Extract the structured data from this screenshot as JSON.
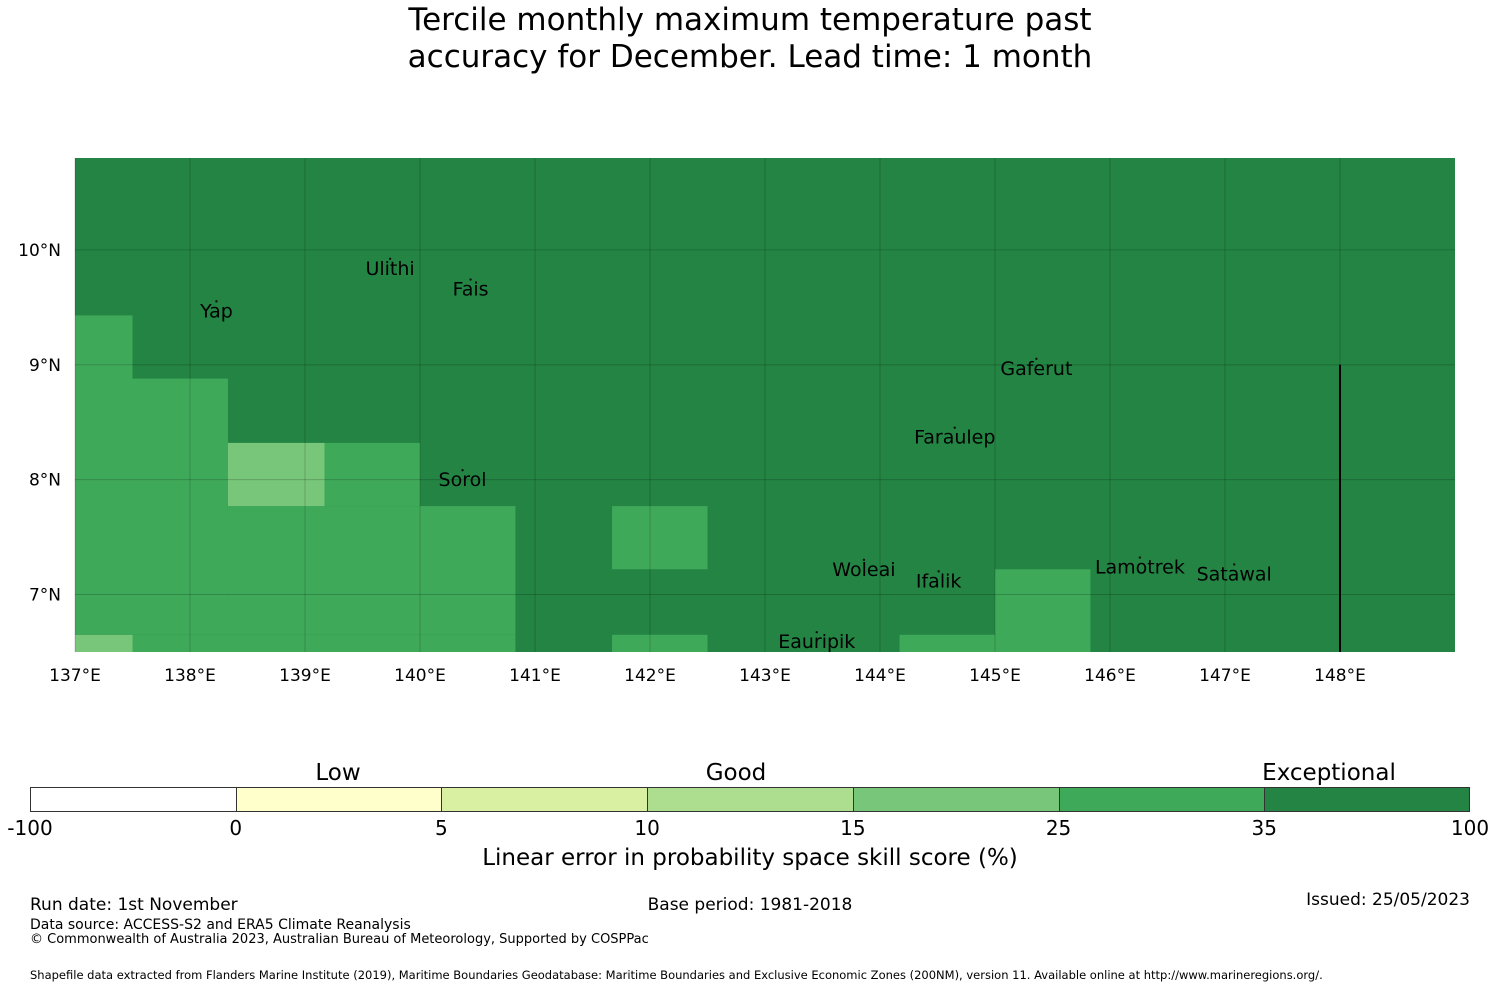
{
  "title": {
    "line1": "Tercile monthly maximum temperature past",
    "line2": "accuracy for December. Lead time: 1 month"
  },
  "map": {
    "lon_range": [
      137,
      149
    ],
    "lat_range": [
      6.5,
      10.8
    ],
    "lon_ticks": [
      137,
      138,
      139,
      140,
      141,
      142,
      143,
      144,
      145,
      146,
      147,
      148
    ],
    "lon_tick_labels": [
      "137°E",
      "138°E",
      "139°E",
      "140°E",
      "141°E",
      "142°E",
      "143°E",
      "144°E",
      "145°E",
      "146°E",
      "147°E",
      "148°E"
    ],
    "lat_ticks": [
      7,
      8,
      9,
      10
    ],
    "lat_tick_labels": [
      "7°N",
      "8°N",
      "9°N",
      "10°N"
    ],
    "background_category": 6,
    "cells": [
      {
        "lon": [
          137.0,
          137.5
        ],
        "lat": [
          6.5,
          6.65
        ],
        "cat": 4
      },
      {
        "lon": [
          137.5,
          140.83
        ],
        "lat": [
          6.5,
          6.65
        ],
        "cat": 5
      },
      {
        "lon": [
          137.0,
          137.5
        ],
        "lat": [
          6.65,
          9.43
        ],
        "cat": 5
      },
      {
        "lon": [
          137.5,
          138.33
        ],
        "lat": [
          6.65,
          8.88
        ],
        "cat": 5
      },
      {
        "lon": [
          138.33,
          140.0
        ],
        "lat": [
          6.65,
          7.77
        ],
        "cat": 5
      },
      {
        "lon": [
          138.33,
          139.17
        ],
        "lat": [
          7.77,
          8.32
        ],
        "cat": 4
      },
      {
        "lon": [
          139.17,
          140.0
        ],
        "lat": [
          7.77,
          8.32
        ],
        "cat": 5
      },
      {
        "lon": [
          140.0,
          140.83
        ],
        "lat": [
          6.65,
          7.77
        ],
        "cat": 5
      },
      {
        "lon": [
          141.67,
          142.5
        ],
        "lat": [
          7.22,
          7.77
        ],
        "cat": 5
      },
      {
        "lon": [
          141.67,
          142.5
        ],
        "lat": [
          6.5,
          6.65
        ],
        "cat": 5
      },
      {
        "lon": [
          144.17,
          145.0
        ],
        "lat": [
          6.5,
          6.65
        ],
        "cat": 5
      },
      {
        "lon": [
          145.0,
          145.83
        ],
        "lat": [
          6.5,
          7.22
        ],
        "cat": 5
      }
    ],
    "places": [
      {
        "name": "Ulithi",
        "lon": 139.74,
        "lat": 9.87
      },
      {
        "name": "Fais",
        "lon": 140.44,
        "lat": 9.69
      },
      {
        "name": "Yap",
        "lon": 138.23,
        "lat": 9.5
      },
      {
        "name": "Gaferut",
        "lon": 145.36,
        "lat": 9.0
      },
      {
        "name": "Faraulep",
        "lon": 144.65,
        "lat": 8.4
      },
      {
        "name": "Sorol",
        "lon": 140.37,
        "lat": 8.03
      },
      {
        "name": "Lamotrek",
        "lon": 146.26,
        "lat": 7.27
      },
      {
        "name": "Woleai",
        "lon": 143.86,
        "lat": 7.25
      },
      {
        "name": "Satawal",
        "lon": 147.08,
        "lat": 7.21
      },
      {
        "name": "Ifalik",
        "lon": 144.51,
        "lat": 7.15
      },
      {
        "name": "Eauripik",
        "lon": 143.45,
        "lat": 6.62
      }
    ],
    "boundary_line": {
      "lon": 148.0,
      "lat": [
        6.5,
        9.0
      ]
    }
  },
  "colorbar": {
    "colors": [
      "#ffffff",
      "#ffffcc",
      "#d9f0a3",
      "#addd8e",
      "#78c679",
      "#3fa95a",
      "#238443"
    ],
    "ticks": [
      "-100",
      "0",
      "5",
      "10",
      "15",
      "25",
      "35",
      "100"
    ],
    "class_labels": [
      "Low",
      "Good",
      "Exceptional"
    ],
    "label": "Linear error in probability space skill score (%)"
  },
  "footer": {
    "run_date": "Run date: 1st November",
    "base_period": "Base period: 1981-2018",
    "issued": "Issued: 25/05/2023",
    "data_source": "Data source: ACCESS-S2 and ERA5 Climate Reanalysis",
    "copyright": "© Commonwealth of Australia 2023, Australian Bureau of Meteorology, Supported by COSPPac",
    "shapefile": "Shapefile data extracted from Flanders Marine Institute (2019), Maritime Boundaries Geodatabase: Maritime Boundaries and Exclusive Economic Zones (200NM), version 11. Available online at http://www.marineregions.org/."
  }
}
